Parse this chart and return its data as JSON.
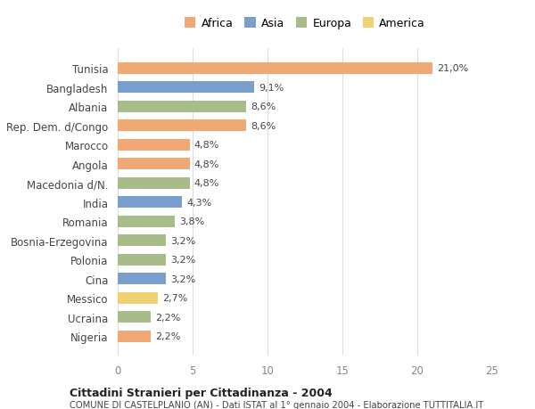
{
  "categories": [
    "Tunisia",
    "Bangladesh",
    "Albania",
    "Rep. Dem. d/Congo",
    "Marocco",
    "Angola",
    "Macedonia d/N.",
    "India",
    "Romania",
    "Bosnia-Erzegovina",
    "Polonia",
    "Cina",
    "Messico",
    "Ucraina",
    "Nigeria"
  ],
  "values": [
    21.0,
    9.1,
    8.6,
    8.6,
    4.8,
    4.8,
    4.8,
    4.3,
    3.8,
    3.2,
    3.2,
    3.2,
    2.7,
    2.2,
    2.2
  ],
  "labels": [
    "21,0%",
    "9,1%",
    "8,6%",
    "8,6%",
    "4,8%",
    "4,8%",
    "4,8%",
    "4,3%",
    "3,8%",
    "3,2%",
    "3,2%",
    "3,2%",
    "2,7%",
    "2,2%",
    "2,2%"
  ],
  "continents": [
    "Africa",
    "Asia",
    "Europa",
    "Africa",
    "Africa",
    "Africa",
    "Europa",
    "Asia",
    "Europa",
    "Europa",
    "Europa",
    "Asia",
    "America",
    "Europa",
    "Africa"
  ],
  "continent_colors": {
    "Africa": "#F0A875",
    "Asia": "#7B9FCC",
    "Europa": "#A8BC8A",
    "America": "#F0D070"
  },
  "legend_order": [
    "Africa",
    "Asia",
    "Europa",
    "America"
  ],
  "title": "Cittadini Stranieri per Cittadinanza - 2004",
  "subtitle": "COMUNE DI CASTELPLANIO (AN) - Dati ISTAT al 1° gennaio 2004 - Elaborazione TUTTITALIA.IT",
  "xlim": [
    0,
    25
  ],
  "xticks": [
    0,
    5,
    10,
    15,
    20,
    25
  ],
  "background_color": "#ffffff",
  "grid_color": "#dddddd"
}
